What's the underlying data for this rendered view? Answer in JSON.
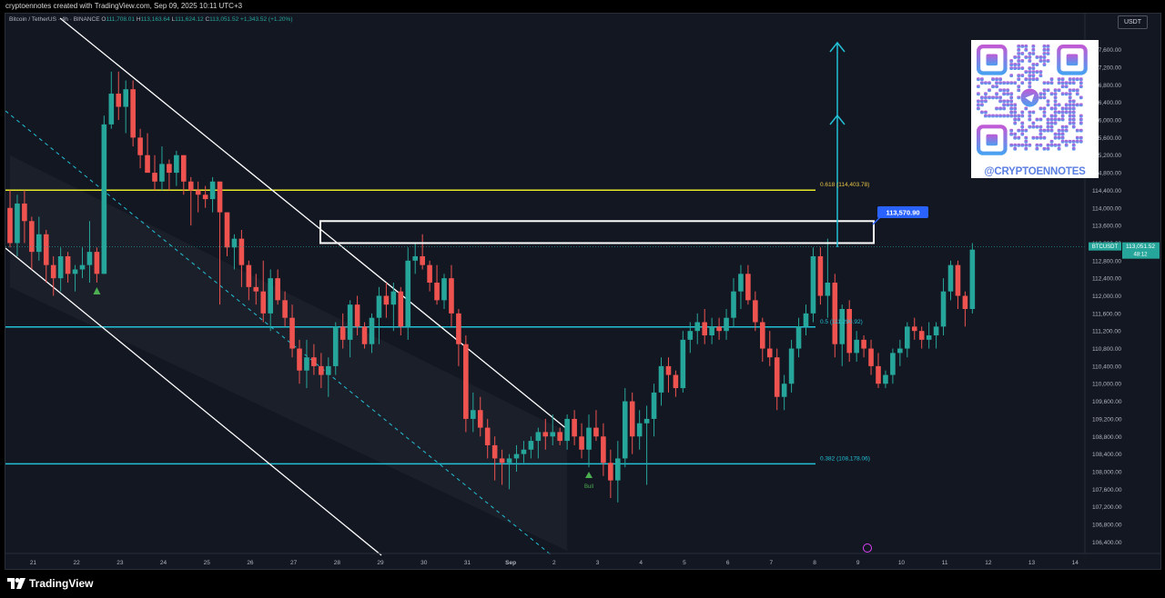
{
  "header": {
    "attribution": "cryptoennotes created with TradingView.com, Sep 09, 2025 10:11 UTC+3"
  },
  "symbol_info": {
    "pair": "Bitcoin / TetherUS · 4h · BINANCE",
    "open_label": "O",
    "open": "111,708.01",
    "high_label": "H",
    "high": "113,163.64",
    "low_label": "L",
    "low": "111,624.12",
    "close_label": "C",
    "close": "113,051.52",
    "change": "+1,343.52 (+1.20%)"
  },
  "currency": "USDT",
  "qr": {
    "handle": "@CRYPTOENNOTES"
  },
  "footer": {
    "brand": "TradingView"
  },
  "colors": {
    "background": "#131722",
    "up": "#26a69a",
    "down": "#ef5350",
    "fib_618": "#e8e82a",
    "levels": "#22c1d6",
    "channel": "#ffffff",
    "target_label": "#2962ff"
  },
  "chart_data": {
    "type": "candlestick",
    "title": "Bitcoin / TetherUS · 4h · BINANCE",
    "ylim": [
      106200,
      117800
    ],
    "y_ticks": [
      "117,600.00",
      "117,200.00",
      "116,800.00",
      "116,400.00",
      "116,000.00",
      "115,600.00",
      "115,200.00",
      "114,800.00",
      "114,400.00",
      "114,000.00",
      "113,600.00",
      "113,200.00",
      "112,800.00",
      "112,400.00",
      "112,000.00",
      "111,600.00",
      "111,200.00",
      "110,800.00",
      "110,400.00",
      "110,000.00",
      "109,600.00",
      "109,200.00",
      "108,800.00",
      "108,400.00",
      "108,000.00",
      "107,600.00",
      "107,200.00",
      "106,800.00",
      "106,400.00"
    ],
    "x_ticks": [
      "21",
      "22",
      "23",
      "24",
      "25",
      "26",
      "27",
      "28",
      "29",
      "30",
      "31",
      "Sep",
      "2",
      "3",
      "4",
      "5",
      "6",
      "7",
      "8",
      "9",
      "10",
      "11",
      "12",
      "13",
      "14"
    ],
    "candles": [
      [
        114000,
        114400,
        113100,
        113200
      ],
      [
        113200,
        114300,
        112900,
        114100
      ],
      [
        114100,
        114400,
        113200,
        113700
      ],
      [
        113700,
        113800,
        112600,
        113000
      ],
      [
        113000,
        113800,
        112800,
        113400
      ],
      [
        113400,
        113500,
        112300,
        112700
      ],
      [
        112700,
        112900,
        112000,
        112400
      ],
      [
        112400,
        113100,
        112100,
        112900
      ],
      [
        112900,
        113000,
        112300,
        112500
      ],
      [
        112500,
        112700,
        112100,
        112600
      ],
      [
        112600,
        113100,
        112400,
        112700
      ],
      [
        112700,
        113700,
        112300,
        113000
      ],
      [
        113000,
        113100,
        112300,
        112500
      ],
      [
        112500,
        116100,
        112500,
        115900
      ],
      [
        115900,
        117100,
        115800,
        116600
      ],
      [
        116600,
        117100,
        116000,
        116300
      ],
      [
        116300,
        116900,
        115700,
        116700
      ],
      [
        116700,
        116900,
        115400,
        115600
      ],
      [
        115600,
        115800,
        114900,
        115200
      ],
      [
        115200,
        115700,
        114800,
        114800
      ],
      [
        114800,
        115200,
        114400,
        114600
      ],
      [
        114600,
        115400,
        114400,
        115000
      ],
      [
        115000,
        115100,
        114400,
        114800
      ],
      [
        114800,
        115300,
        114500,
        115200
      ],
      [
        115200,
        115200,
        114300,
        114600
      ],
      [
        114600,
        114700,
        113600,
        114400
      ],
      [
        114400,
        114600,
        113900,
        114300
      ],
      [
        114300,
        114500,
        114000,
        114200
      ],
      [
        114200,
        114700,
        113900,
        114600
      ],
      [
        114600,
        114600,
        111800,
        113900
      ],
      [
        113900,
        113900,
        112900,
        113100
      ],
      [
        113100,
        113400,
        112600,
        113300
      ],
      [
        113300,
        113500,
        112200,
        112700
      ],
      [
        112700,
        112800,
        111900,
        112200
      ],
      [
        112200,
        112500,
        111800,
        112100
      ],
      [
        112100,
        112800,
        111400,
        111600
      ],
      [
        111600,
        112600,
        111200,
        112400
      ],
      [
        112400,
        112600,
        111800,
        111900
      ],
      [
        111900,
        112100,
        111300,
        111500
      ],
      [
        111500,
        111800,
        110600,
        110800
      ],
      [
        110800,
        111000,
        110000,
        110300
      ],
      [
        110300,
        111000,
        109900,
        110600
      ],
      [
        110600,
        110900,
        110200,
        110400
      ],
      [
        110400,
        110700,
        109900,
        110200
      ],
      [
        110200,
        110600,
        109700,
        110400
      ],
      [
        110400,
        111400,
        110200,
        111300
      ],
      [
        111300,
        111600,
        110800,
        111000
      ],
      [
        111000,
        111900,
        110600,
        111800
      ],
      [
        111800,
        112000,
        111100,
        111300
      ],
      [
        111300,
        111400,
        110800,
        110900
      ],
      [
        110900,
        111600,
        110700,
        111500
      ],
      [
        111500,
        112200,
        110900,
        112000
      ],
      [
        112000,
        112300,
        111500,
        111800
      ],
      [
        111800,
        112300,
        111200,
        112100
      ],
      [
        112100,
        112200,
        111100,
        111300
      ],
      [
        111300,
        113100,
        111000,
        112800
      ],
      [
        112800,
        113200,
        112500,
        112900
      ],
      [
        112900,
        113400,
        112600,
        112700
      ],
      [
        112700,
        112800,
        112100,
        112300
      ],
      [
        112300,
        112700,
        111800,
        111900
      ],
      [
        111900,
        112500,
        111700,
        112400
      ],
      [
        112400,
        112700,
        111300,
        111600
      ],
      [
        111600,
        111700,
        110400,
        110900
      ],
      [
        110900,
        111100,
        108900,
        109200
      ],
      [
        109200,
        109800,
        108900,
        109400
      ],
      [
        109400,
        109700,
        108800,
        109000
      ],
      [
        109000,
        109200,
        108300,
        108600
      ],
      [
        108600,
        108800,
        107800,
        108300
      ],
      [
        108300,
        108500,
        107700,
        108200
      ],
      [
        108200,
        108400,
        107600,
        108300
      ],
      [
        108300,
        108600,
        108000,
        108400
      ],
      [
        108400,
        108700,
        108200,
        108500
      ],
      [
        108500,
        108800,
        108300,
        108700
      ],
      [
        108700,
        109000,
        108300,
        108900
      ],
      [
        108900,
        109200,
        108500,
        108800
      ],
      [
        108800,
        109300,
        108600,
        108900
      ],
      [
        108900,
        109000,
        108600,
        108700
      ],
      [
        108700,
        109300,
        108500,
        109200
      ],
      [
        109200,
        109400,
        108600,
        108800
      ],
      [
        108800,
        109100,
        108300,
        108500
      ],
      [
        108500,
        109300,
        108100,
        109000
      ],
      [
        109000,
        109400,
        108700,
        108800
      ],
      [
        108800,
        109100,
        107900,
        108200
      ],
      [
        108200,
        108500,
        107400,
        107800
      ],
      [
        107800,
        108700,
        107300,
        108300
      ],
      [
        108300,
        109900,
        108100,
        109600
      ],
      [
        109600,
        109800,
        108400,
        108800
      ],
      [
        108800,
        109400,
        108500,
        109100
      ],
      [
        109100,
        109500,
        107700,
        109200
      ],
      [
        109200,
        110000,
        108800,
        109800
      ],
      [
        109800,
        110600,
        109500,
        110400
      ],
      [
        110400,
        110600,
        109800,
        110200
      ],
      [
        110200,
        110300,
        109700,
        109900
      ],
      [
        109900,
        111200,
        109800,
        111000
      ],
      [
        111000,
        111400,
        110700,
        111200
      ],
      [
        111200,
        111600,
        110900,
        111400
      ],
      [
        111400,
        111700,
        110900,
        111100
      ],
      [
        111100,
        111500,
        110900,
        111300
      ],
      [
        111300,
        111500,
        111000,
        111200
      ],
      [
        111200,
        111700,
        111000,
        111500
      ],
      [
        111500,
        112400,
        111300,
        112100
      ],
      [
        112100,
        112700,
        111700,
        112500
      ],
      [
        112500,
        112700,
        111800,
        111900
      ],
      [
        111900,
        112100,
        111200,
        111400
      ],
      [
        111400,
        111500,
        110500,
        110800
      ],
      [
        110800,
        111200,
        110400,
        110600
      ],
      [
        110600,
        110800,
        109400,
        109700
      ],
      [
        109700,
        110200,
        109400,
        110000
      ],
      [
        110000,
        111000,
        109800,
        110800
      ],
      [
        110800,
        111500,
        110600,
        111300
      ],
      [
        111300,
        111800,
        111100,
        111600
      ],
      [
        111600,
        113100,
        111400,
        112900
      ],
      [
        112900,
        113100,
        111800,
        112000
      ],
      [
        112000,
        113300,
        111500,
        112300
      ],
      [
        112300,
        112500,
        110600,
        110900
      ],
      [
        110900,
        111800,
        110400,
        111700
      ],
      [
        111700,
        111900,
        110500,
        110700
      ],
      [
        110700,
        111200,
        110500,
        111000
      ],
      [
        111000,
        111100,
        110600,
        110800
      ],
      [
        110800,
        111000,
        110200,
        110400
      ],
      [
        110400,
        110700,
        109900,
        110000
      ],
      [
        110000,
        110300,
        109900,
        110200
      ],
      [
        110200,
        110800,
        110000,
        110700
      ],
      [
        110700,
        111000,
        110400,
        110800
      ],
      [
        110800,
        111400,
        110600,
        111300
      ],
      [
        111300,
        111500,
        111000,
        111200
      ],
      [
        111200,
        111300,
        110800,
        111000
      ],
      [
        111000,
        111400,
        110800,
        111100
      ],
      [
        111100,
        111400,
        110800,
        111300
      ],
      [
        111300,
        112400,
        111100,
        112100
      ],
      [
        112100,
        112800,
        111900,
        112700
      ],
      [
        112700,
        112800,
        111700,
        112000
      ],
      [
        112000,
        112100,
        111300,
        111700
      ],
      [
        111700,
        113200,
        111600,
        113050
      ]
    ],
    "current_price": {
      "symbol": "BTCUSDT",
      "value": "113,051.52",
      "countdown": "48:12"
    },
    "annotations": [
      {
        "text": "0.618 (114,403.78)",
        "price": 114403.78
      },
      {
        "text": "0.5 (111,290.92)",
        "price": 111290.92
      },
      {
        "text": "0.382 (108,178.06)",
        "price": 108178.06
      },
      {
        "text": "113,570.90",
        "price": 113570.9
      }
    ],
    "signals": [
      {
        "text": "Bull",
        "candle": 80
      },
      {
        "text": "",
        "candle": 12
      }
    ],
    "resistance_zone": {
      "low": 113200,
      "high": 113700
    },
    "grid": false
  }
}
